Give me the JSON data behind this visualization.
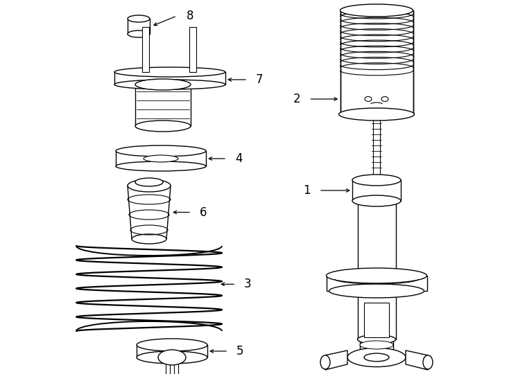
{
  "background_color": "#ffffff",
  "line_color": "#000000",
  "lw": 1.0,
  "fig_width": 7.34,
  "fig_height": 5.4,
  "dpi": 100,
  "xlim": [
    0,
    734
  ],
  "ylim": [
    540,
    0
  ],
  "label_fontsize": 12
}
